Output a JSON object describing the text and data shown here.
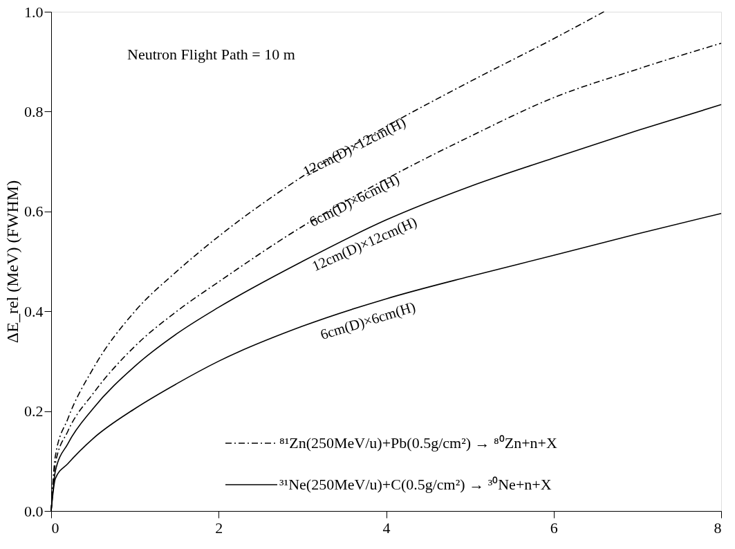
{
  "chart_data": {
    "type": "line",
    "ylabel": "ΔE_rel (MeV)  (FWHM)",
    "xlim": [
      0,
      8
    ],
    "xticks": [
      0,
      2,
      4,
      6,
      8
    ],
    "ylim": [
      0,
      1.0
    ],
    "yticks": [
      {
        "value": 0,
        "label": "0.0"
      },
      0.2,
      0.4,
      0.6,
      0.8,
      {
        "value": 1.0,
        "label": "1.0"
      }
    ],
    "grid": false,
    "legend": "bottom right",
    "marker": "none",
    "annotations": [
      "Neutron Flight Path = 10 m",
      "12cm(D)×12cm(H)",
      "6cm(D)×6cm(H)",
      "12cm(D)×12cm(H)",
      "6cm(D)×6cm(H)"
    ],
    "x": [
      0,
      0.05,
      0.2,
      0.5,
      1,
      1.5,
      2,
      3,
      4,
      5,
      6,
      7,
      8
    ],
    "series": [
      {
        "name": "⁸¹Zn(250MeV/u)+Pb(0.5g/cm²) → ⁸⁰Zn+n+X",
        "color": "#000000",
        "line_style": "dashdot",
        "x": [
          0,
          0.05,
          0.2,
          0.5,
          1,
          1.5,
          2,
          3,
          4,
          5,
          6,
          6.6
        ],
        "values": [
          0,
          0.11,
          0.185,
          0.285,
          0.4,
          0.48,
          0.55,
          0.67,
          0.77,
          0.86,
          0.946,
          1.0
        ]
      },
      {
        "color": "#000000",
        "line_style": "dashdot",
        "values": [
          0,
          0.095,
          0.16,
          0.235,
          0.33,
          0.4,
          0.459,
          0.57,
          0.665,
          0.75,
          0.828,
          0.885,
          0.937
        ]
      },
      {
        "name": "³¹Ne(250MeV/u)+C(0.5g/cm²) → ³⁰Ne+n+X",
        "color": "#000000",
        "line_style": "solid",
        "values": [
          0,
          0.08,
          0.135,
          0.205,
          0.29,
          0.355,
          0.408,
          0.5,
          0.583,
          0.65,
          0.707,
          0.762,
          0.814
        ]
      },
      {
        "color": "#000000",
        "line_style": "solid",
        "values": [
          0,
          0.065,
          0.095,
          0.145,
          0.205,
          0.255,
          0.3,
          0.37,
          0.425,
          0.47,
          0.512,
          0.555,
          0.596
        ]
      }
    ]
  }
}
